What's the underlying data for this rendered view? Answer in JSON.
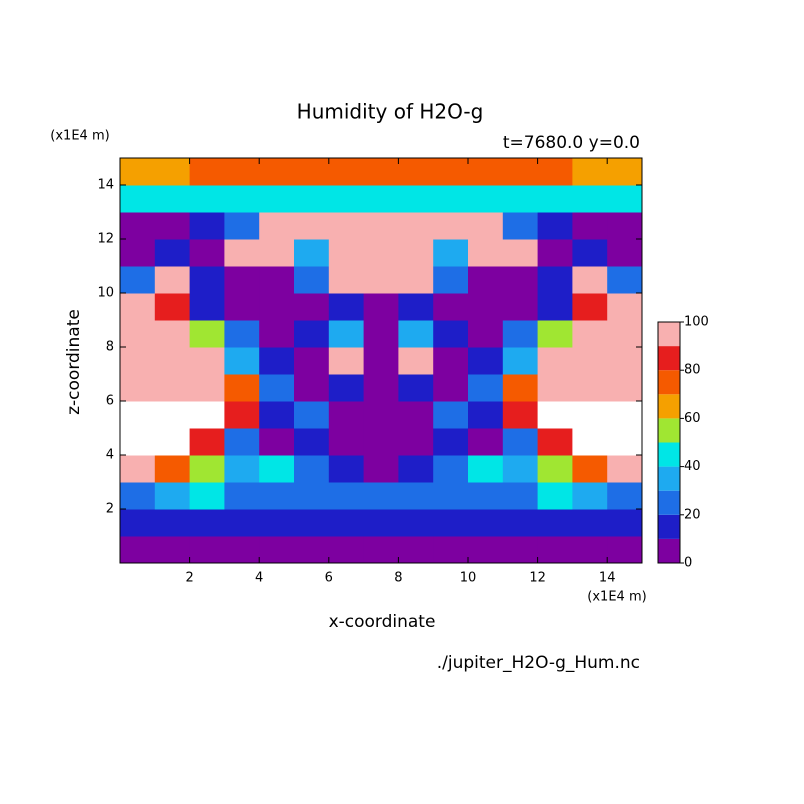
{
  "chart_data": {
    "type": "contour",
    "title": "Humidity of H2O-g",
    "subtitle": "t=7680.0 y=0.0",
    "x_label": "x-coordinate",
    "y_label": "z-coordinate",
    "x_unit": "(x1E4 m)",
    "y_unit": "(x1E4 m)",
    "file": "./jupiter_H2O-g_Hum.nc",
    "xlim": [
      0,
      15
    ],
    "ylim": [
      0,
      15
    ],
    "xticks": [
      2,
      4,
      6,
      8,
      10,
      12,
      14
    ],
    "yticks": [
      2,
      4,
      6,
      8,
      10,
      12,
      14
    ],
    "levels": [
      0,
      10,
      20,
      30,
      40,
      50,
      60,
      70,
      80,
      90,
      100
    ],
    "colors": [
      "#7d00a0",
      "#1e1ec8",
      "#1e6ee6",
      "#1eaaf0",
      "#00e6e6",
      "#a0e632",
      "#f5a000",
      "#f55a00",
      "#e61e1e",
      "#f8b0b0"
    ],
    "over_color": "#ffffff",
    "colorbar_ticks": [
      0,
      20,
      40,
      60,
      80,
      100
    ],
    "z": [
      [
        5,
        5,
        5,
        5,
        5,
        5,
        5,
        5,
        5,
        5,
        5,
        5,
        5,
        5,
        5
      ],
      [
        15,
        15,
        15,
        15,
        15,
        15,
        15,
        15,
        15,
        15,
        15,
        15,
        15,
        15,
        15
      ],
      [
        25,
        35,
        45,
        25,
        25,
        25,
        25,
        25,
        25,
        25,
        25,
        25,
        45,
        35,
        25
      ],
      [
        95,
        75,
        55,
        35,
        45,
        25,
        15,
        5,
        15,
        25,
        45,
        35,
        55,
        75,
        95
      ],
      [
        105,
        105,
        85,
        25,
        5,
        15,
        5,
        5,
        5,
        15,
        5,
        25,
        85,
        105,
        105
      ],
      [
        105,
        105,
        105,
        85,
        15,
        25,
        5,
        5,
        5,
        25,
        15,
        85,
        105,
        105,
        105
      ],
      [
        95,
        95,
        95,
        75,
        25,
        5,
        15,
        5,
        15,
        5,
        25,
        75,
        95,
        95,
        95
      ],
      [
        95,
        95,
        95,
        35,
        15,
        5,
        95,
        5,
        95,
        5,
        15,
        35,
        95,
        95,
        95
      ],
      [
        95,
        95,
        55,
        25,
        5,
        15,
        35,
        5,
        35,
        15,
        5,
        25,
        55,
        95,
        95
      ],
      [
        95,
        85,
        15,
        5,
        5,
        5,
        15,
        5,
        15,
        5,
        5,
        5,
        15,
        85,
        95
      ],
      [
        25,
        95,
        15,
        5,
        5,
        25,
        95,
        95,
        95,
        25,
        5,
        5,
        15,
        95,
        25
      ],
      [
        5,
        15,
        5,
        95,
        95,
        35,
        95,
        95,
        95,
        35,
        95,
        95,
        5,
        15,
        5
      ],
      [
        5,
        5,
        15,
        25,
        95,
        95,
        95,
        95,
        95,
        95,
        95,
        25,
        15,
        5,
        5
      ],
      [
        45,
        45,
        45,
        45,
        45,
        45,
        45,
        45,
        45,
        45,
        45,
        45,
        45,
        45,
        45
      ],
      [
        65,
        65,
        75,
        75,
        75,
        75,
        75,
        75,
        75,
        75,
        75,
        75,
        75,
        65,
        65
      ]
    ]
  }
}
